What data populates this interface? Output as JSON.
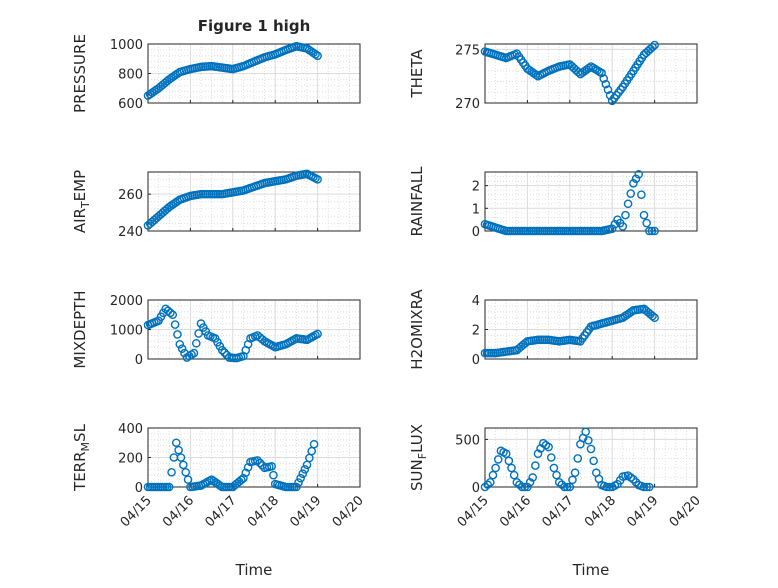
{
  "figure_title": "Figure 1 high",
  "xlabel": "Time",
  "x_tick_labels": [
    "04/15",
    "04/16",
    "04/17",
    "04/18",
    "04/19",
    "04/20"
  ],
  "marker_color": "#0072bd",
  "chart_data": [
    {
      "type": "scatter",
      "marker": "circle-open",
      "position": "row1-left",
      "ylabel": "PRESSURE",
      "title": "Figure 1 high",
      "ylim": [
        600,
        1000
      ],
      "yticks": [
        600,
        800,
        1000
      ],
      "xlim": [
        "2012-04-15",
        "2012-04-20"
      ],
      "grid": true,
      "x": [
        "2012-04-15 00:00",
        "2012-04-15 06:00",
        "2012-04-15 12:00",
        "2012-04-15 18:00",
        "2012-04-16 00:00",
        "2012-04-16 06:00",
        "2012-04-16 12:00",
        "2012-04-16 18:00",
        "2012-04-17 00:00",
        "2012-04-17 06:00",
        "2012-04-17 12:00",
        "2012-04-17 18:00",
        "2012-04-18 00:00",
        "2012-04-18 06:00",
        "2012-04-18 12:00",
        "2012-04-18 18:00",
        "2012-04-19 00:00"
      ],
      "y": [
        650,
        700,
        760,
        810,
        830,
        845,
        850,
        840,
        830,
        850,
        880,
        910,
        930,
        960,
        985,
        970,
        920
      ]
    },
    {
      "type": "scatter",
      "marker": "circle-open",
      "position": "row1-right",
      "ylabel": "THETA",
      "ylim": [
        270,
        275.5
      ],
      "yticks": [
        270,
        275
      ],
      "xlim": [
        "2012-04-15",
        "2012-04-20"
      ],
      "grid": true,
      "x": [
        "2012-04-15 00:00",
        "2012-04-15 06:00",
        "2012-04-15 12:00",
        "2012-04-15 18:00",
        "2012-04-16 00:00",
        "2012-04-16 06:00",
        "2012-04-16 12:00",
        "2012-04-16 18:00",
        "2012-04-17 00:00",
        "2012-04-17 06:00",
        "2012-04-17 12:00",
        "2012-04-17 18:00",
        "2012-04-18 00:00",
        "2012-04-18 06:00",
        "2012-04-18 12:00",
        "2012-04-18 18:00",
        "2012-04-19 00:00"
      ],
      "y": [
        274.8,
        274.5,
        274.2,
        274.6,
        273.2,
        272.5,
        273.0,
        273.4,
        273.6,
        272.7,
        273.4,
        272.8,
        270.2,
        271.5,
        273.0,
        274.5,
        275.4
      ]
    },
    {
      "type": "scatter",
      "marker": "circle-open",
      "position": "row2-left",
      "ylabel": "AIR_TEMP",
      "ylabel_display": [
        "AIR",
        "T",
        "EMP"
      ],
      "ylim": [
        240,
        272
      ],
      "yticks": [
        240,
        260
      ],
      "xlim": [
        "2012-04-15",
        "2012-04-20"
      ],
      "grid": true,
      "x": [
        "2012-04-15 00:00",
        "2012-04-15 06:00",
        "2012-04-15 12:00",
        "2012-04-15 18:00",
        "2012-04-16 00:00",
        "2012-04-16 06:00",
        "2012-04-16 12:00",
        "2012-04-16 18:00",
        "2012-04-17 00:00",
        "2012-04-17 06:00",
        "2012-04-17 12:00",
        "2012-04-17 18:00",
        "2012-04-18 00:00",
        "2012-04-18 06:00",
        "2012-04-18 12:00",
        "2012-04-18 18:00",
        "2012-04-19 00:00"
      ],
      "y": [
        243,
        248,
        253,
        257,
        259,
        260,
        260,
        260,
        261,
        262,
        264,
        266,
        267,
        268,
        270,
        271,
        268
      ]
    },
    {
      "type": "scatter",
      "marker": "circle-open",
      "position": "row2-right",
      "ylabel": "RAINFALL",
      "ylim": [
        0,
        2.6
      ],
      "yticks": [
        0,
        1,
        2
      ],
      "xlim": [
        "2012-04-15",
        "2012-04-20"
      ],
      "grid": true,
      "x": [
        "2012-04-15 00:00",
        "2012-04-15 12:00",
        "2012-04-16 00:00",
        "2012-04-16 12:00",
        "2012-04-17 00:00",
        "2012-04-17 12:00",
        "2012-04-17 18:00",
        "2012-04-18 00:00",
        "2012-04-18 03:00",
        "2012-04-18 06:00",
        "2012-04-18 09:00",
        "2012-04-18 12:00",
        "2012-04-18 15:00",
        "2012-04-18 18:00",
        "2012-04-18 21:00",
        "2012-04-19 00:00"
      ],
      "y": [
        0.3,
        0,
        0,
        0,
        0,
        0,
        0,
        0.1,
        0.5,
        0.2,
        1.2,
        2.1,
        2.5,
        0.7,
        0,
        0
      ]
    },
    {
      "type": "scatter",
      "marker": "circle-open",
      "position": "row3-left",
      "ylabel": "MIXDEPTH",
      "ylim": [
        0,
        2000
      ],
      "yticks": [
        0,
        1000,
        2000
      ],
      "xlim": [
        "2012-04-15",
        "2012-04-20"
      ],
      "grid": true,
      "x": [
        "2012-04-15 00:00",
        "2012-04-15 06:00",
        "2012-04-15 10:00",
        "2012-04-15 14:00",
        "2012-04-15 18:00",
        "2012-04-15 22:00",
        "2012-04-16 02:00",
        "2012-04-16 06:00",
        "2012-04-16 10:00",
        "2012-04-16 14:00",
        "2012-04-16 18:00",
        "2012-04-16 22:00",
        "2012-04-17 02:00",
        "2012-04-17 06:00",
        "2012-04-17 10:00",
        "2012-04-17 14:00",
        "2012-04-17 18:00",
        "2012-04-18 00:00",
        "2012-04-18 06:00",
        "2012-04-18 12:00",
        "2012-04-18 18:00",
        "2012-04-19 00:00"
      ],
      "y": [
        1150,
        1300,
        1700,
        1500,
        500,
        50,
        200,
        1200,
        800,
        700,
        300,
        50,
        30,
        100,
        700,
        800,
        600,
        400,
        500,
        700,
        650,
        850
      ]
    },
    {
      "type": "scatter",
      "marker": "circle-open",
      "position": "row3-right",
      "ylabel": "H2OMIXRA",
      "ylim": [
        0,
        4
      ],
      "yticks": [
        0,
        2,
        4
      ],
      "xlim": [
        "2012-04-15",
        "2012-04-20"
      ],
      "grid": true,
      "x": [
        "2012-04-15 00:00",
        "2012-04-15 06:00",
        "2012-04-15 12:00",
        "2012-04-15 18:00",
        "2012-04-16 00:00",
        "2012-04-16 06:00",
        "2012-04-16 12:00",
        "2012-04-16 18:00",
        "2012-04-17 00:00",
        "2012-04-17 06:00",
        "2012-04-17 12:00",
        "2012-04-17 18:00",
        "2012-04-18 00:00",
        "2012-04-18 06:00",
        "2012-04-18 12:00",
        "2012-04-18 18:00",
        "2012-04-19 00:00"
      ],
      "y": [
        0.4,
        0.4,
        0.5,
        0.6,
        1.2,
        1.3,
        1.3,
        1.2,
        1.3,
        1.2,
        2.2,
        2.4,
        2.6,
        2.8,
        3.3,
        3.4,
        2.8
      ]
    },
    {
      "type": "scatter",
      "marker": "circle-open",
      "position": "row4-left",
      "ylabel": "TERR_MSL",
      "ylabel_display": [
        "TERR",
        "M",
        "SL"
      ],
      "ylim": [
        0,
        400
      ],
      "yticks": [
        0,
        200,
        400
      ],
      "xlim": [
        "2012-04-15",
        "2012-04-20"
      ],
      "grid": true,
      "x": [
        "2012-04-15 00:00",
        "2012-04-15 06:00",
        "2012-04-15 12:00",
        "2012-04-15 16:00",
        "2012-04-15 20:00",
        "2012-04-16 00:00",
        "2012-04-16 06:00",
        "2012-04-16 12:00",
        "2012-04-16 18:00",
        "2012-04-17 00:00",
        "2012-04-17 06:00",
        "2012-04-17 10:00",
        "2012-04-17 14:00",
        "2012-04-17 18:00",
        "2012-04-17 22:00",
        "2012-04-18 00:00",
        "2012-04-18 06:00",
        "2012-04-18 12:00",
        "2012-04-18 18:00",
        "2012-04-18 22:00"
      ],
      "y": [
        0,
        0,
        0,
        300,
        150,
        0,
        10,
        50,
        0,
        0,
        60,
        170,
        180,
        130,
        140,
        20,
        0,
        0,
        150,
        290
      ]
    },
    {
      "type": "scatter",
      "marker": "circle-open",
      "position": "row4-right",
      "ylabel": "SUN_FLUX",
      "ylabel_display": [
        "SUN",
        "F",
        "LUX"
      ],
      "ylim": [
        0,
        620
      ],
      "yticks": [
        0,
        500
      ],
      "xlim": [
        "2012-04-15",
        "2012-04-20"
      ],
      "grid": true,
      "x": [
        "2012-04-15 00:00",
        "2012-04-15 03:00",
        "2012-04-15 06:00",
        "2012-04-15 09:00",
        "2012-04-15 12:00",
        "2012-04-15 15:00",
        "2012-04-15 18:00",
        "2012-04-15 21:00",
        "2012-04-16 00:00",
        "2012-04-16 03:00",
        "2012-04-16 06:00",
        "2012-04-16 09:00",
        "2012-04-16 12:00",
        "2012-04-16 15:00",
        "2012-04-16 18:00",
        "2012-04-16 21:00",
        "2012-04-17 00:00",
        "2012-04-17 03:00",
        "2012-04-17 06:00",
        "2012-04-17 09:00",
        "2012-04-17 12:00",
        "2012-04-17 15:00",
        "2012-04-17 18:00",
        "2012-04-17 21:00",
        "2012-04-18 00:00",
        "2012-04-18 03:00",
        "2012-04-18 06:00",
        "2012-04-18 09:00",
        "2012-04-18 12:00",
        "2012-04-18 15:00",
        "2012-04-18 18:00",
        "2012-04-18 21:00"
      ],
      "y": [
        0,
        50,
        200,
        380,
        350,
        200,
        50,
        0,
        0,
        100,
        350,
        460,
        420,
        200,
        50,
        0,
        0,
        150,
        450,
        580,
        400,
        150,
        20,
        0,
        0,
        30,
        110,
        120,
        80,
        20,
        0,
        0
      ]
    }
  ]
}
